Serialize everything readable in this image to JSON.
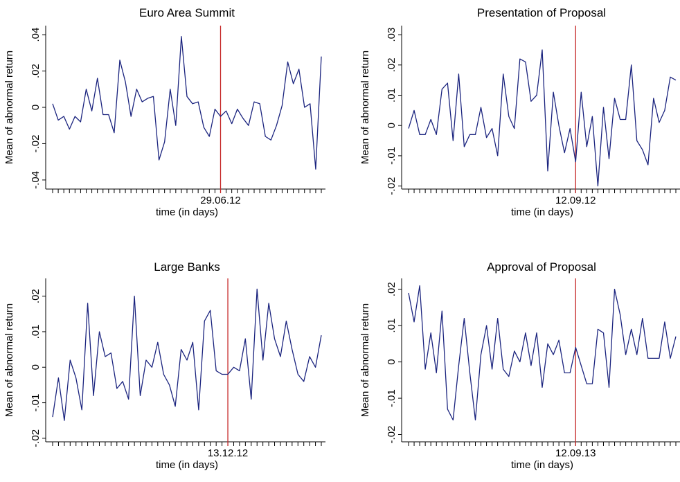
{
  "colors": {
    "series": "#1a237e",
    "event_line": "#c62828",
    "axis": "#000000"
  },
  "chart_data": [
    {
      "type": "line",
      "title": "Euro Area Summit",
      "ylabel": "Mean of abnormal return",
      "xlabel": "time (in days)",
      "event_label": "29.06.12",
      "event_index": 30,
      "yticks": [
        -0.04,
        -0.02,
        0,
        0.02,
        0.04
      ],
      "ytick_labels": [
        "-.04",
        "-.02",
        "0",
        ".02",
        ".04"
      ],
      "ylim": [
        -0.045,
        0.045
      ],
      "values": [
        0.002,
        -0.007,
        -0.005,
        -0.012,
        -0.005,
        -0.008,
        0.01,
        -0.002,
        0.016,
        -0.004,
        -0.004,
        -0.014,
        0.026,
        0.014,
        -0.005,
        0.01,
        0.003,
        0.005,
        0.006,
        -0.029,
        -0.019,
        0.01,
        -0.01,
        0.039,
        0.006,
        0.002,
        0.003,
        -0.011,
        -0.016,
        -0.001,
        -0.005,
        -0.002,
        -0.009,
        -0.001,
        -0.006,
        -0.01,
        0.003,
        0.002,
        -0.016,
        -0.018,
        -0.01,
        0.001,
        0.025,
        0.013,
        0.021,
        0.0,
        0.002,
        -0.034,
        0.028
      ]
    },
    {
      "type": "line",
      "title": "Presentation of Proposal",
      "ylabel": "Mean of abnormal return",
      "xlabel": "time (in days)",
      "event_label": "12.09.12",
      "event_index": 30,
      "yticks": [
        -0.02,
        -0.01,
        0,
        0.01,
        0.02,
        0.03
      ],
      "ytick_labels": [
        "-.02",
        "-.01",
        "0",
        ".01",
        ".02",
        ".03"
      ],
      "ylim": [
        -0.021,
        0.033
      ],
      "values": [
        -0.001,
        0.005,
        -0.003,
        -0.003,
        0.002,
        -0.003,
        0.012,
        0.014,
        -0.005,
        0.017,
        -0.007,
        -0.003,
        -0.003,
        0.006,
        -0.004,
        -0.001,
        -0.01,
        0.017,
        0.003,
        -0.001,
        0.022,
        0.021,
        0.008,
        0.01,
        0.025,
        -0.015,
        0.011,
        0.0,
        -0.009,
        -0.001,
        -0.012,
        0.011,
        -0.007,
        0.003,
        -0.02,
        0.006,
        -0.011,
        0.009,
        0.002,
        0.002,
        0.02,
        -0.005,
        -0.008,
        -0.013,
        0.009,
        0.001,
        0.005,
        0.016,
        0.015
      ]
    },
    {
      "type": "line",
      "title": "Large Banks",
      "ylabel": "Mean of abnormal return",
      "xlabel": "time (in days)",
      "event_label": "13.12.12",
      "event_index": 30,
      "yticks": [
        -0.02,
        -0.01,
        0,
        0.01,
        0.02
      ],
      "ytick_labels": [
        "-.02",
        "-.01",
        "0",
        ".01",
        ".02"
      ],
      "ylim": [
        -0.021,
        0.025
      ],
      "values": [
        -0.014,
        -0.003,
        -0.015,
        0.002,
        -0.003,
        -0.012,
        0.018,
        -0.008,
        0.01,
        0.003,
        0.004,
        -0.006,
        -0.004,
        -0.009,
        0.02,
        -0.008,
        0.002,
        0.0,
        0.007,
        -0.002,
        -0.005,
        -0.011,
        0.005,
        0.002,
        0.007,
        -0.012,
        0.013,
        0.016,
        -0.001,
        -0.002,
        -0.002,
        0.0,
        -0.001,
        0.008,
        -0.009,
        0.022,
        0.002,
        0.018,
        0.008,
        0.003,
        0.013,
        0.005,
        -0.002,
        -0.004,
        0.003,
        0.0,
        0.009
      ]
    },
    {
      "type": "line",
      "title": "Approval of Proposal",
      "ylabel": "Mean of abnormal return",
      "xlabel": "time (in days)",
      "event_label": "12.09.13",
      "event_index": 30,
      "yticks": [
        -0.02,
        -0.01,
        0,
        0.01,
        0.02
      ],
      "ytick_labels": [
        "-.02",
        "-.01",
        "0",
        ".01",
        ".02"
      ],
      "ylim": [
        -0.022,
        0.023
      ],
      "values": [
        0.019,
        0.011,
        0.021,
        -0.002,
        0.008,
        -0.003,
        0.014,
        -0.013,
        -0.016,
        -0.001,
        0.012,
        -0.003,
        -0.016,
        0.002,
        0.01,
        -0.002,
        0.012,
        -0.002,
        -0.004,
        0.003,
        0.0,
        0.008,
        -0.001,
        0.008,
        -0.007,
        0.005,
        0.002,
        0.006,
        -0.003,
        -0.003,
        0.004,
        -0.001,
        -0.006,
        -0.006,
        0.009,
        0.008,
        -0.007,
        0.02,
        0.013,
        0.002,
        0.009,
        0.002,
        0.012,
        0.001,
        0.001,
        0.001,
        0.011,
        0.001,
        0.007
      ]
    }
  ]
}
